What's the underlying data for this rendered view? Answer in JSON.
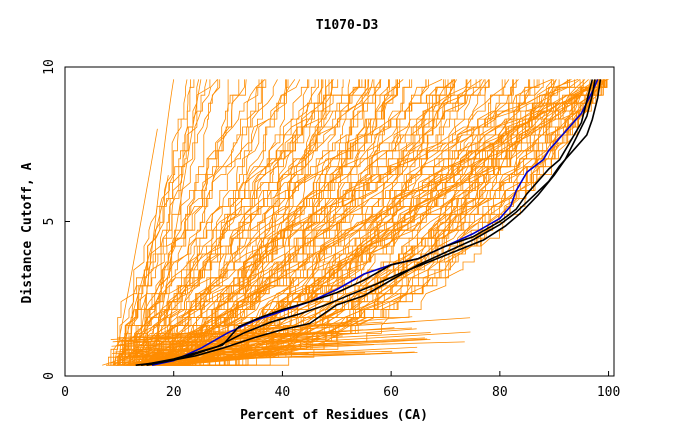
{
  "chart_data": {
    "type": "line",
    "title": "T1070-D3",
    "xlabel": "Percent of Residues (CA)",
    "ylabel": "Distance Cutoff, A",
    "xlim": [
      0,
      101
    ],
    "ylim": [
      0,
      10
    ],
    "xticks": [
      0,
      20,
      40,
      60,
      80,
      100
    ],
    "yticks": [
      0,
      5,
      10
    ],
    "grid": false,
    "legend": "none",
    "colors": {
      "background_models": "#ff8c00",
      "highlight_blue": "#0000cc",
      "highlight_black": "#000000",
      "axis": "#000000"
    },
    "series": [
      {
        "color": "#0000cc",
        "points": [
          [
            16,
            0.35
          ],
          [
            20,
            0.5
          ],
          [
            25,
            0.9
          ],
          [
            30,
            1.4
          ],
          [
            35,
            1.8
          ],
          [
            40,
            2.1
          ],
          [
            45,
            2.4
          ],
          [
            50,
            2.8
          ],
          [
            55,
            3.3
          ],
          [
            60,
            3.6
          ],
          [
            65,
            3.8
          ],
          [
            70,
            4.2
          ],
          [
            75,
            4.6
          ],
          [
            80,
            5.1
          ],
          [
            82,
            5.5
          ],
          [
            83,
            6.0
          ],
          [
            85,
            6.6
          ],
          [
            88,
            7.0
          ],
          [
            89,
            7.3
          ],
          [
            92,
            7.9
          ],
          [
            95,
            8.5
          ],
          [
            97,
            9.2
          ],
          [
            98,
            9.6
          ]
        ]
      },
      {
        "color": "#000000",
        "points": [
          [
            14,
            0.35
          ],
          [
            20,
            0.55
          ],
          [
            25,
            0.8
          ],
          [
            29,
            1.0
          ],
          [
            32,
            1.6
          ],
          [
            36,
            1.9
          ],
          [
            40,
            2.15
          ],
          [
            45,
            2.4
          ],
          [
            50,
            2.7
          ],
          [
            55,
            3.1
          ],
          [
            60,
            3.6
          ],
          [
            65,
            3.8
          ],
          [
            70,
            4.2
          ],
          [
            75,
            4.5
          ],
          [
            80,
            5.0
          ],
          [
            83,
            5.4
          ],
          [
            85,
            5.9
          ],
          [
            87,
            6.3
          ],
          [
            89,
            6.7
          ],
          [
            91,
            7.0
          ],
          [
            93,
            7.6
          ],
          [
            95,
            8.2
          ],
          [
            96,
            8.9
          ],
          [
            97,
            9.6
          ]
        ]
      },
      {
        "color": "#000000",
        "points": [
          [
            13,
            0.35
          ],
          [
            18,
            0.45
          ],
          [
            24,
            0.65
          ],
          [
            29,
            0.9
          ],
          [
            35,
            1.25
          ],
          [
            40,
            1.5
          ],
          [
            45,
            1.7
          ],
          [
            50,
            2.3
          ],
          [
            55,
            2.6
          ],
          [
            60,
            3.1
          ],
          [
            65,
            3.6
          ],
          [
            70,
            4.0
          ],
          [
            75,
            4.4
          ],
          [
            80,
            4.9
          ],
          [
            83,
            5.3
          ],
          [
            86,
            5.8
          ],
          [
            89,
            6.3
          ],
          [
            91,
            6.8
          ],
          [
            94,
            7.4
          ],
          [
            96,
            7.8
          ],
          [
            97,
            8.3
          ],
          [
            98,
            9.0
          ],
          [
            98.5,
            9.6
          ]
        ]
      },
      {
        "color": "#000000",
        "points": [
          [
            15,
            0.35
          ],
          [
            22,
            0.6
          ],
          [
            28,
            0.95
          ],
          [
            33,
            1.4
          ],
          [
            38,
            1.75
          ],
          [
            43,
            2.0
          ],
          [
            48,
            2.3
          ],
          [
            52,
            2.6
          ],
          [
            57,
            2.95
          ],
          [
            62,
            3.35
          ],
          [
            67,
            3.7
          ],
          [
            72,
            4.05
          ],
          [
            77,
            4.4
          ],
          [
            81,
            4.85
          ],
          [
            84,
            5.3
          ],
          [
            87,
            5.85
          ],
          [
            90,
            6.5
          ],
          [
            92,
            7.0
          ],
          [
            94,
            7.7
          ],
          [
            96,
            8.4
          ],
          [
            97,
            9.1
          ],
          [
            97.5,
            9.6
          ]
        ]
      }
    ]
  }
}
